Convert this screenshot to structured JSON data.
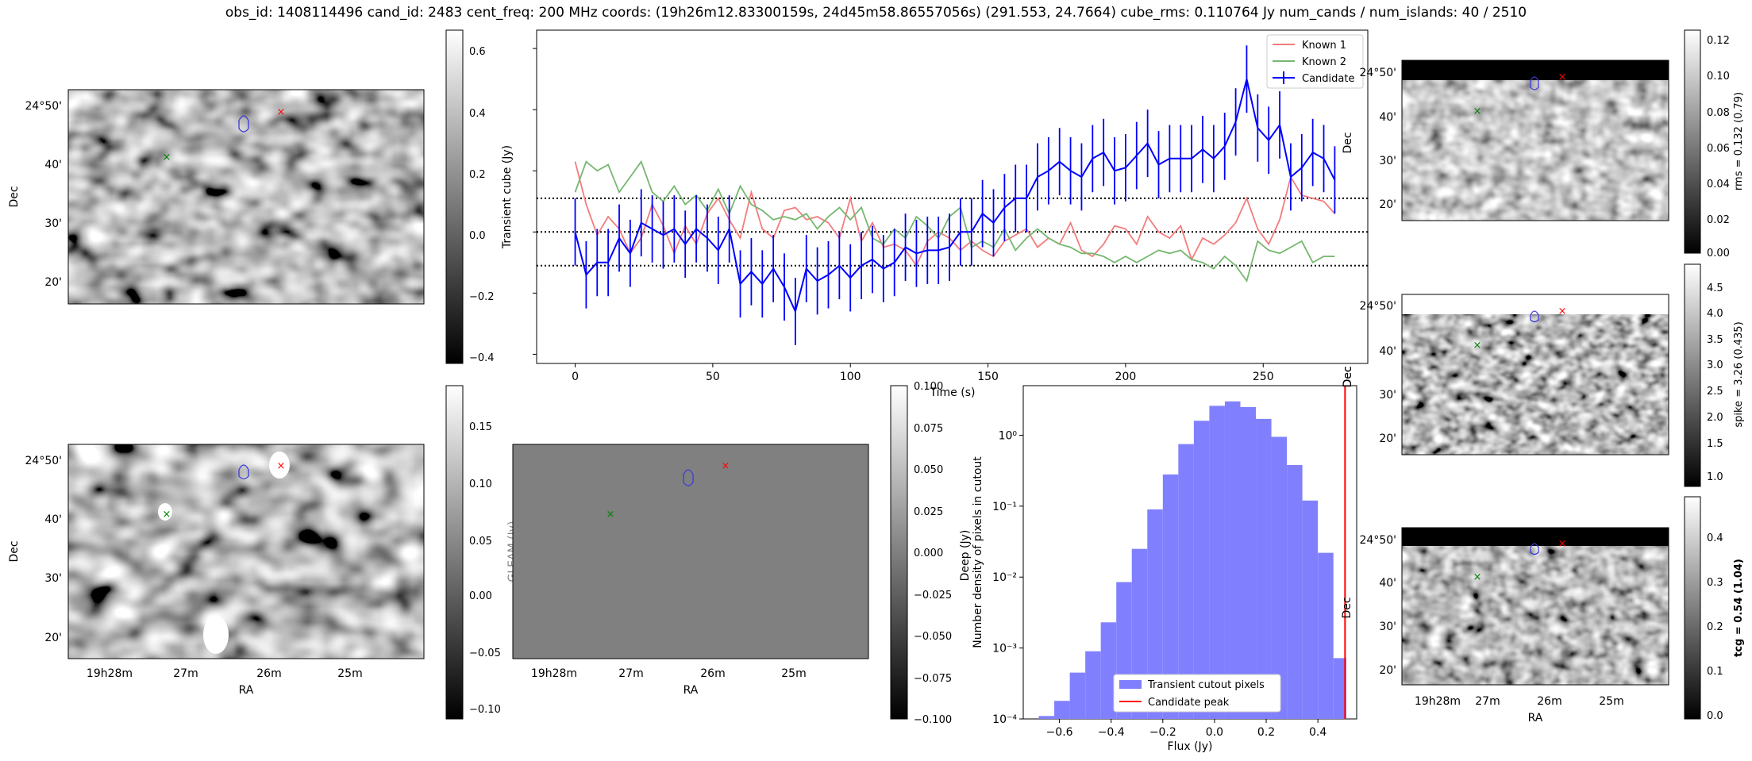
{
  "header": {
    "title": "obs_id: 1408114496 cand_id: 2483 cent_freq: 200 MHz coords: (19h26m12.83300159s, 24d45m58.86557056s) (291.553, 24.7664) cube_rms: 0.110764 Jy num_cands / num_islands: 40 / 2510"
  },
  "colors": {
    "known1": "#f47c7c",
    "known2": "#76b76f",
    "candidate": "#0000ff",
    "hist_fill": "#8080ff",
    "peak_line": "#ff0000",
    "marker_red": "#ff0000",
    "marker_green": "#008000",
    "contour": "#3b3bd9"
  },
  "axes_text": {
    "ra_label": "RA",
    "dec_label": "Dec",
    "ra_ticks": [
      "19h28m",
      "27m",
      "26m",
      "25m"
    ],
    "dec_ticks": [
      "24°50'",
      "40'",
      "30'",
      "20'"
    ],
    "dec_ticks_right": [
      "24°50'",
      "40'",
      "30'",
      "20'"
    ]
  },
  "panels": {
    "transient_image": {
      "colorbar_label": "Transient cube (Jy)",
      "colorbar_ticks": [
        "0.6",
        "0.4",
        "0.2",
        "0.0",
        "−0.2",
        "−0.4"
      ]
    },
    "deep_image": {
      "colorbar_label": "Deep (Jy)",
      "colorbar_ticks": [
        "0.15",
        "0.10",
        "0.05",
        "0.00",
        "−0.05",
        "−0.10"
      ]
    },
    "gleam_image": {
      "colorbar_label": "GLEAM (Jy)",
      "colorbar_ticks": [
        "0.100",
        "0.075",
        "0.050",
        "0.025",
        "0.000",
        "−0.025",
        "−0.050",
        "−0.075",
        "−0.100"
      ]
    },
    "rms_image": {
      "colorbar_label": "rms = 0.132 (0.79)",
      "colorbar_ticks": [
        "0.12",
        "0.10",
        "0.08",
        "0.06",
        "0.04",
        "0.02",
        "0.00"
      ]
    },
    "spike_image": {
      "colorbar_label": "spike = 3.26 (0.435)",
      "colorbar_ticks": [
        "4.5",
        "4.0",
        "3.5",
        "3.0",
        "2.5",
        "2.0",
        "1.5",
        "1.0"
      ]
    },
    "tcg_image": {
      "colorbar_label": "tcg = 0.54 (1.04)",
      "colorbar_ticks": [
        "0.4",
        "0.3",
        "0.2",
        "0.1",
        "0.0"
      ]
    }
  },
  "chart_data": [
    {
      "type": "line",
      "title": "",
      "xlabel": "Time (s)",
      "ylabel": "Transient cube (Jy)",
      "xlim": [
        -14,
        288
      ],
      "ylim": [
        -0.43,
        0.66
      ],
      "x_ticks": [
        0,
        50,
        100,
        150,
        200,
        250
      ],
      "legend": [
        "Known 1",
        "Known 2",
        "Candidate"
      ],
      "legend_position": "top-right",
      "hlines": [
        0.11,
        0.0,
        -0.11
      ],
      "x": [
        0,
        4,
        8,
        12,
        16,
        20,
        24,
        28,
        32,
        36,
        40,
        44,
        48,
        52,
        56,
        60,
        64,
        68,
        72,
        76,
        80,
        84,
        88,
        92,
        96,
        100,
        104,
        108,
        112,
        116,
        120,
        124,
        128,
        132,
        136,
        140,
        144,
        148,
        152,
        156,
        160,
        164,
        168,
        172,
        176,
        180,
        184,
        188,
        192,
        196,
        200,
        204,
        208,
        212,
        216,
        220,
        224,
        228,
        232,
        236,
        240,
        244,
        248,
        252,
        256,
        260,
        264,
        268,
        272,
        276
      ],
      "series": [
        {
          "name": "Candidate",
          "values": [
            0.0,
            -0.14,
            -0.1,
            -0.1,
            -0.02,
            -0.07,
            0.03,
            0.01,
            -0.01,
            0.01,
            -0.04,
            0.01,
            -0.02,
            -0.06,
            0.01,
            -0.17,
            -0.13,
            -0.17,
            -0.12,
            -0.18,
            -0.26,
            -0.12,
            -0.16,
            -0.14,
            -0.11,
            -0.15,
            -0.11,
            -0.09,
            -0.12,
            -0.1,
            -0.05,
            -0.07,
            -0.06,
            -0.06,
            -0.05,
            0.0,
            0.0,
            0.06,
            0.03,
            0.08,
            0.11,
            0.11,
            0.18,
            0.2,
            0.23,
            0.2,
            0.18,
            0.24,
            0.26,
            0.2,
            0.21,
            0.25,
            0.29,
            0.22,
            0.24,
            0.24,
            0.24,
            0.27,
            0.24,
            0.28,
            0.36,
            0.5,
            0.34,
            0.3,
            0.35,
            0.18,
            0.21,
            0.26,
            0.24,
            0.17
          ],
          "errors": 0.11
        },
        {
          "name": "Known 1",
          "values": [
            0.23,
            0.09,
            -0.01,
            0.05,
            0.01,
            -0.07,
            -0.02,
            0.09,
            0.02,
            -0.07,
            0.02,
            -0.04,
            0.06,
            0.11,
            0.04,
            -0.02,
            0.13,
            0.01,
            -0.02,
            0.07,
            0.08,
            0.04,
            0.05,
            0.03,
            -0.02,
            0.11,
            -0.03,
            0.03,
            -0.05,
            -0.04,
            -0.06,
            -0.11,
            -0.03,
            0.0,
            -0.02,
            -0.06,
            -0.03,
            -0.06,
            -0.08,
            -0.03,
            -0.01,
            0.01,
            -0.05,
            -0.02,
            -0.04,
            0.03,
            -0.06,
            -0.08,
            -0.04,
            0.02,
            0.01,
            -0.04,
            0.05,
            0.0,
            -0.02,
            0.02,
            -0.09,
            -0.02,
            -0.04,
            -0.01,
            0.03,
            0.11,
            0.01,
            -0.04,
            0.04,
            0.18,
            0.12,
            0.11,
            0.1,
            0.06
          ],
          "errors": null
        },
        {
          "name": "Known 2",
          "values": [
            0.13,
            0.23,
            0.2,
            0.22,
            0.13,
            0.18,
            0.23,
            0.13,
            0.1,
            0.15,
            0.09,
            0.12,
            0.07,
            0.14,
            0.06,
            0.15,
            0.09,
            0.07,
            0.04,
            0.05,
            0.04,
            0.06,
            0.01,
            0.05,
            0.08,
            0.04,
            0.08,
            -0.02,
            -0.04,
            0.01,
            -0.02,
            0.05,
            0.02,
            -0.02,
            0.05,
            0.08,
            -0.05,
            -0.03,
            -0.05,
            0.01,
            -0.06,
            -0.02,
            0.01,
            -0.02,
            -0.04,
            -0.05,
            -0.07,
            -0.07,
            -0.08,
            -0.1,
            -0.08,
            -0.1,
            -0.08,
            -0.06,
            -0.07,
            -0.06,
            -0.09,
            -0.1,
            -0.12,
            -0.08,
            -0.11,
            -0.16,
            -0.03,
            -0.06,
            -0.07,
            -0.05,
            -0.03,
            -0.1,
            -0.08,
            -0.08
          ],
          "errors": null
        }
      ]
    },
    {
      "type": "bar",
      "title": "",
      "xlabel": "Flux (Jy)",
      "ylabel": "Number density of pixels in cutout",
      "yscale": "log",
      "xlim": [
        -0.74,
        0.55
      ],
      "ylim": [
        0.0001,
        5
      ],
      "x_ticks": [
        -0.6,
        -0.4,
        -0.2,
        0.0,
        0.2,
        0.4
      ],
      "y_ticks": [
        "10⁰",
        "10⁻¹",
        "10⁻²",
        "10⁻³",
        "10⁻⁴"
      ],
      "legend": [
        "Transient cutout pixels",
        "Candidate peak"
      ],
      "legend_position": "bottom-center",
      "bin_edges": [
        -0.68,
        -0.62,
        -0.56,
        -0.5,
        -0.44,
        -0.38,
        -0.32,
        -0.26,
        -0.2,
        -0.14,
        -0.08,
        -0.02,
        0.04,
        0.1,
        0.16,
        0.22,
        0.28,
        0.34,
        0.4,
        0.46,
        0.51
      ],
      "values": [
        0.00011,
        0.00018,
        0.00045,
        0.0009,
        0.0023,
        0.0085,
        0.025,
        0.09,
        0.28,
        0.75,
        1.6,
        2.6,
        3.0,
        2.5,
        1.7,
        0.95,
        0.38,
        0.12,
        0.022,
        0.00072
      ],
      "candidate_peak": 0.505
    }
  ]
}
